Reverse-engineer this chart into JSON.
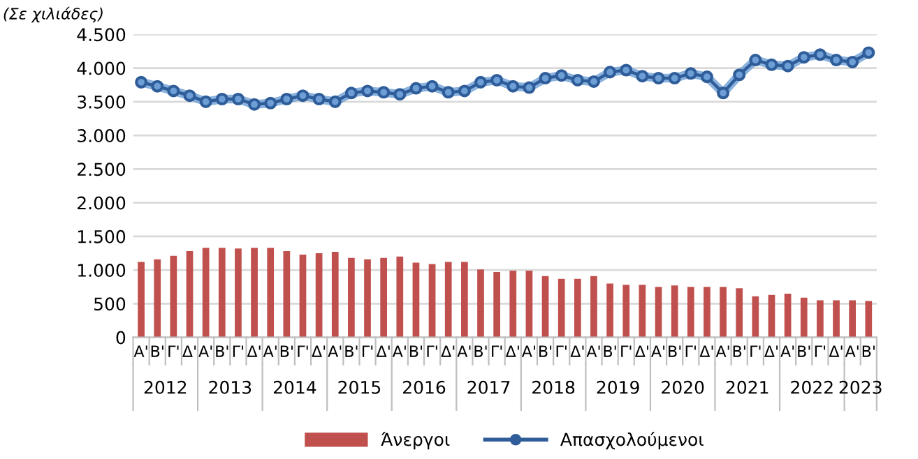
{
  "chart_data": {
    "type": "bar",
    "ylabel": "(Σε χιλιάδες)",
    "categories": [
      "Α'",
      "Β'",
      "Γ'",
      "Δ'",
      "Α'",
      "Β'",
      "Γ'",
      "Δ'",
      "Α'",
      "Β'",
      "Γ'",
      "Δ'",
      "Α'",
      "Β'",
      "Γ'",
      "Δ'",
      "Α'",
      "Β'",
      "Γ'",
      "Δ'",
      "Α'",
      "Β'",
      "Γ'",
      "Δ'",
      "Α'",
      "Β'",
      "Γ'",
      "Δ'",
      "Α'",
      "Β'",
      "Γ'",
      "Δ'",
      "Α'",
      "Β'",
      "Γ'",
      "Δ'",
      "Α'",
      "Β'",
      "Γ'",
      "Δ'",
      "Α'",
      "Β'",
      "Γ'",
      "Δ'",
      "Α'",
      "Β'"
    ],
    "annotations": [
      "2012",
      "2013",
      "2014",
      "2015",
      "2016",
      "2017",
      "2018",
      "2019",
      "2020",
      "2021",
      "2022",
      "2023"
    ],
    "series": [
      {
        "name": "Άνεργοι",
        "color": "#c0504d",
        "values": [
          1120,
          1160,
          1210,
          1280,
          1330,
          1330,
          1320,
          1330,
          1330,
          1280,
          1230,
          1250,
          1270,
          1180,
          1160,
          1180,
          1200,
          1110,
          1090,
          1120,
          1120,
          1010,
          970,
          990,
          990,
          910,
          870,
          870,
          910,
          800,
          780,
          780,
          750,
          770,
          750,
          750,
          750,
          730,
          610,
          630,
          650,
          590,
          550,
          550,
          550,
          540
        ]
      },
      {
        "name": "Απασχολούμενοι",
        "type": "line",
        "color": "#2f5d9a",
        "marker": "circle",
        "values": [
          3790,
          3730,
          3660,
          3590,
          3500,
          3540,
          3540,
          3460,
          3480,
          3540,
          3590,
          3540,
          3500,
          3630,
          3660,
          3640,
          3610,
          3700,
          3730,
          3640,
          3660,
          3790,
          3820,
          3730,
          3710,
          3850,
          3890,
          3820,
          3800,
          3940,
          3970,
          3880,
          3850,
          3850,
          3920,
          3870,
          3630,
          3900,
          4120,
          4050,
          4030,
          4160,
          4200,
          4120,
          4090,
          4230
        ]
      }
    ],
    "ylim": [
      0,
      4500
    ],
    "yticks": [
      0,
      500,
      {
        "value": 1000,
        "label": "1.000"
      },
      {
        "value": 1500,
        "label": "1.500"
      },
      {
        "value": 2000,
        "label": "2.000"
      },
      {
        "value": 2500,
        "label": "2.500"
      },
      {
        "value": 3000,
        "label": "3.000"
      },
      {
        "value": 3500,
        "label": "3.500"
      },
      {
        "value": 4000,
        "label": "4.000"
      },
      {
        "value": 4500,
        "label": "4.500"
      }
    ],
    "grid": "y",
    "legend": "bottom"
  }
}
